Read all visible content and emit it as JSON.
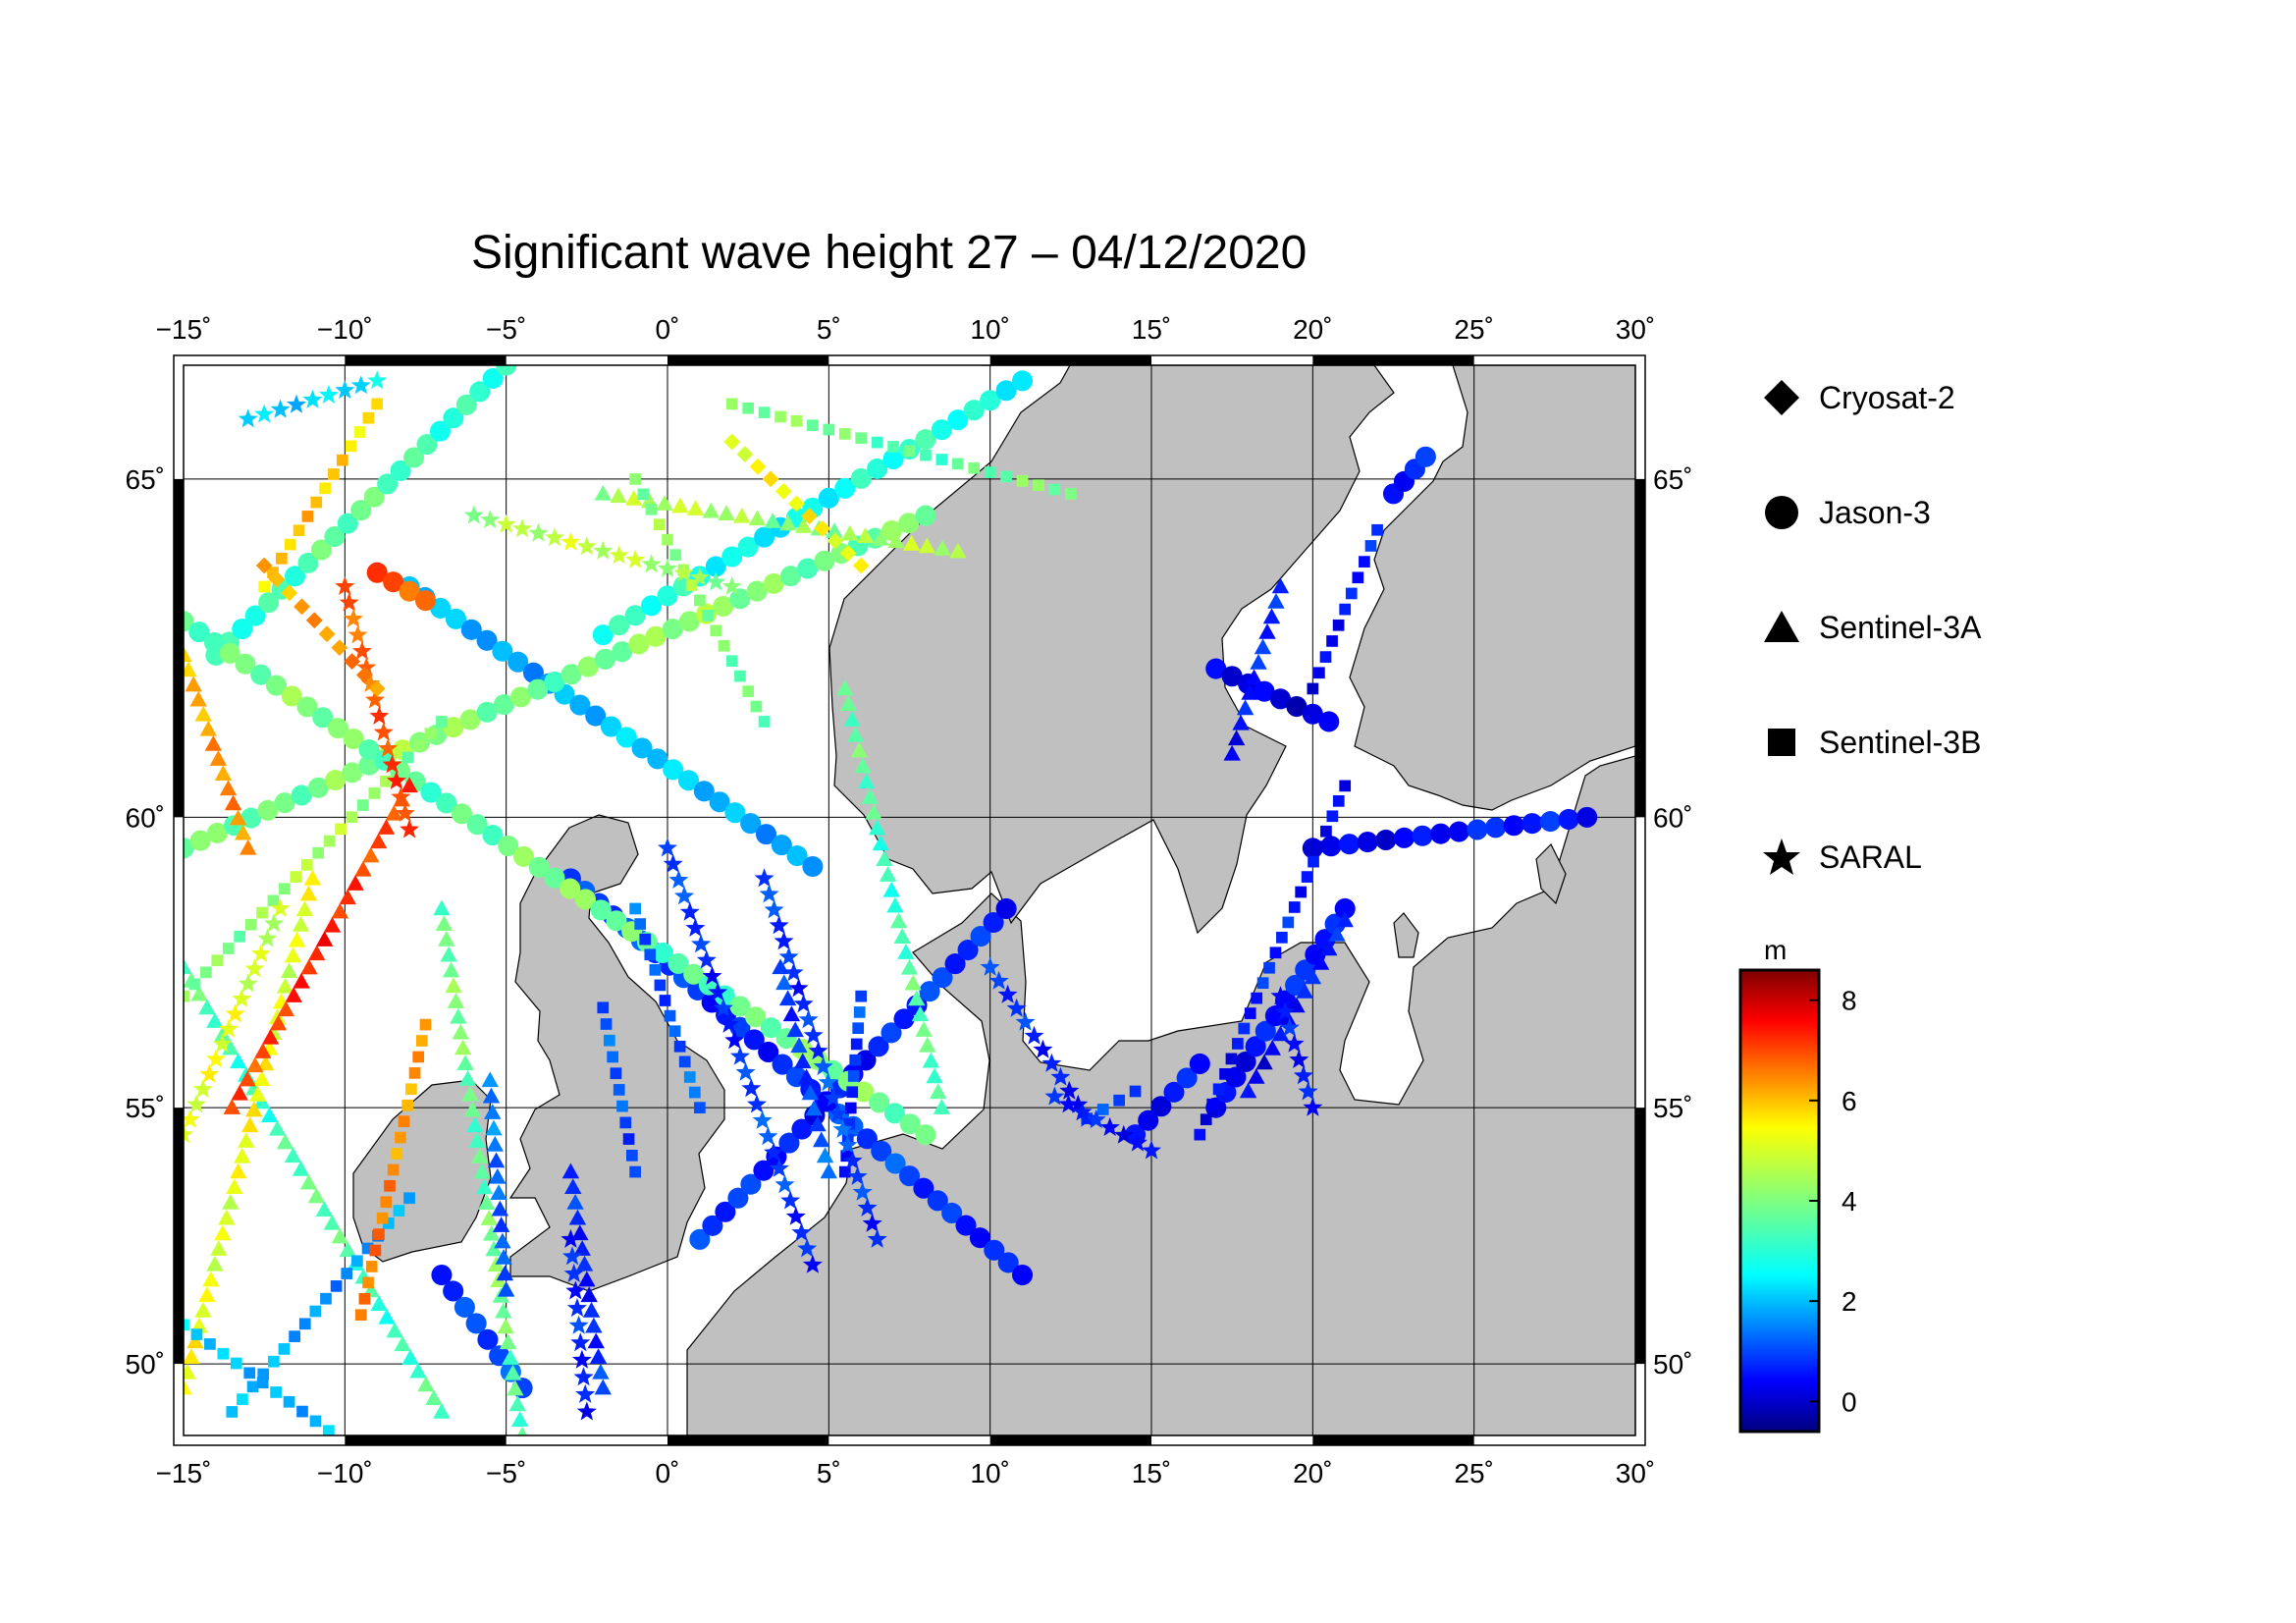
{
  "title": "Significant wave height 27 – 04/12/2020",
  "map": {
    "lon_range": [
      -15,
      30
    ],
    "lat_range": [
      48.5,
      66.5
    ],
    "lon_ticks": [
      -15,
      -10,
      -5,
      0,
      5,
      10,
      15,
      20,
      25,
      30
    ],
    "lat_ticks": [
      50,
      55,
      60,
      65
    ],
    "lon_tick_labels": [
      "−15˚",
      "−10˚",
      "−5˚",
      "0˚",
      "5˚",
      "10˚",
      "15˚",
      "20˚",
      "25˚",
      "30˚"
    ],
    "lat_tick_labels": [
      "50˚",
      "55˚",
      "60˚",
      "65˚"
    ],
    "land_color": "#c0c0c0",
    "sea_color": "#ffffff",
    "gridlines": true
  },
  "legend": {
    "items": [
      {
        "label": "Cryosat-2",
        "symbol": "diamond"
      },
      {
        "label": "Jason-3",
        "symbol": "circle"
      },
      {
        "label": "Sentinel-3A",
        "symbol": "triangle"
      },
      {
        "label": "Sentinel-3B",
        "symbol": "square"
      },
      {
        "label": "SARAL",
        "symbol": "star"
      }
    ]
  },
  "colorbar": {
    "unit": "m",
    "min": -0.6,
    "max": 8.6,
    "ticks": [
      0,
      2,
      4,
      6,
      8
    ],
    "tick_labels": [
      "0",
      "2",
      "4",
      "6",
      "8"
    ],
    "colormap": "jet"
  },
  "tracks": [
    {
      "satellite": "Jason-3",
      "symbol": "circle",
      "from": [
        -3,
        59.0
      ],
      "to": [
        11,
        51.8
      ],
      "swh": 1.0
    },
    {
      "satellite": "Jason-3",
      "symbol": "circle",
      "from": [
        1,
        52.5
      ],
      "to": [
        10.5,
        58.5
      ],
      "swh": 0.8
    },
    {
      "satellite": "Jason-3",
      "symbol": "circle",
      "from": [
        -8,
        63.5
      ],
      "to": [
        4.5,
        59.2
      ],
      "swh": 2.2
    },
    {
      "satellite": "Jason-3",
      "symbol": "circle",
      "from": [
        -15,
        59.5
      ],
      "to": [
        8,
        64.5
      ],
      "swh": 4.0
    },
    {
      "satellite": "Jason-3",
      "symbol": "circle",
      "from": [
        -14,
        62.5
      ],
      "to": [
        -5,
        66.5
      ],
      "swh": 3.5
    },
    {
      "satellite": "Jason-3",
      "symbol": "circle",
      "from": [
        -15,
        63.0
      ],
      "to": [
        8,
        54.5
      ],
      "swh": 3.8
    },
    {
      "satellite": "Jason-3",
      "symbol": "circle",
      "from": [
        -7,
        51.8
      ],
      "to": [
        -4.5,
        49.5
      ],
      "swh": 1.0
    },
    {
      "satellite": "Jason-3",
      "symbol": "circle",
      "from": [
        -2,
        62.8
      ],
      "to": [
        11,
        66.3
      ],
      "swh": 3.0
    },
    {
      "satellite": "Jason-3",
      "symbol": "circle",
      "from": [
        -9,
        63.7
      ],
      "to": [
        -7.5,
        63.3
      ],
      "swh": 6.5
    },
    {
      "satellite": "Jason-3",
      "symbol": "circle",
      "from": [
        17,
        62.3
      ],
      "to": [
        20.5,
        61.5
      ],
      "swh": 0.4
    },
    {
      "satellite": "Jason-3",
      "symbol": "circle",
      "from": [
        20,
        59.5
      ],
      "to": [
        28.5,
        60.0
      ],
      "swh": 0.6
    },
    {
      "satellite": "Jason-3",
      "symbol": "circle",
      "from": [
        17,
        55.0
      ],
      "to": [
        21,
        58.5
      ],
      "swh": 0.6
    },
    {
      "satellite": "Jason-3",
      "symbol": "circle",
      "from": [
        14.5,
        54.5
      ],
      "to": [
        16.5,
        55.8
      ],
      "swh": 0.5
    },
    {
      "satellite": "Jason-3",
      "symbol": "circle",
      "from": [
        22.5,
        64.8
      ],
      "to": [
        23.5,
        65.3
      ],
      "swh": 0.6
    },
    {
      "satellite": "Sentinel-3A",
      "symbol": "triangle",
      "from": [
        -15,
        57.5
      ],
      "to": [
        -7,
        49.0
      ],
      "swh": 3.5
    },
    {
      "satellite": "Sentinel-3A",
      "symbol": "triangle",
      "from": [
        -11,
        59.0
      ],
      "to": [
        -15,
        49.5
      ],
      "swh": 5.0
    },
    {
      "satellite": "Sentinel-3A",
      "symbol": "triangle",
      "from": [
        -8,
        60.5
      ],
      "to": [
        -13.5,
        55.0
      ],
      "swh": 7.0
    },
    {
      "satellite": "Sentinel-3A",
      "symbol": "triangle",
      "from": [
        -15,
        62.5
      ],
      "to": [
        -13,
        59.5
      ],
      "swh": 6.0
    },
    {
      "satellite": "Sentinel-3A",
      "symbol": "triangle",
      "from": [
        -7,
        58.5
      ],
      "to": [
        -4.5,
        48.5
      ],
      "swh": 3.8
    },
    {
      "satellite": "Sentinel-3A",
      "symbol": "triangle",
      "from": [
        5.5,
        62.0
      ],
      "to": [
        8.5,
        55.0
      ],
      "swh": 3.5
    },
    {
      "satellite": "Sentinel-3A",
      "symbol": "triangle",
      "from": [
        -5.5,
        55.5
      ],
      "to": [
        -5,
        51.5
      ],
      "swh": 1.5
    },
    {
      "satellite": "Sentinel-3A",
      "symbol": "triangle",
      "from": [
        -3,
        53.8
      ],
      "to": [
        -2,
        49.5
      ],
      "swh": 0.9
    },
    {
      "satellite": "Sentinel-3A",
      "symbol": "triangle",
      "from": [
        3.5,
        57.5
      ],
      "to": [
        5,
        53.8
      ],
      "swh": 1.2
    },
    {
      "satellite": "Sentinel-3A",
      "symbol": "triangle",
      "from": [
        18,
        55.3
      ],
      "to": [
        21,
        58.3
      ],
      "swh": 0.6
    },
    {
      "satellite": "Sentinel-3A",
      "symbol": "triangle",
      "from": [
        17.5,
        61.0
      ],
      "to": [
        19,
        63.5
      ],
      "swh": 0.7
    },
    {
      "satellite": "Sentinel-3A",
      "symbol": "triangle",
      "from": [
        -2,
        64.8
      ],
      "to": [
        9,
        64.0
      ],
      "swh": 4.3
    },
    {
      "satellite": "Sentinel-3B",
      "symbol": "square",
      "from": [
        -13.5,
        49.0
      ],
      "to": [
        -8,
        53.3
      ],
      "swh": 2.0
    },
    {
      "satellite": "Sentinel-3B",
      "symbol": "square",
      "from": [
        -15,
        50.8
      ],
      "to": [
        -10.5,
        48.6
      ],
      "swh": 2.3
    },
    {
      "satellite": "Sentinel-3B",
      "symbol": "square",
      "from": [
        -7.5,
        56.5
      ],
      "to": [
        -9.5,
        51.0
      ],
      "swh": 6.2
    },
    {
      "satellite": "Sentinel-3B",
      "symbol": "square",
      "from": [
        -7,
        61.5
      ],
      "to": [
        -15,
        57.0
      ],
      "swh": 4.2
    },
    {
      "satellite": "Sentinel-3B",
      "symbol": "square",
      "from": [
        -9,
        66.0
      ],
      "to": [
        -12.5,
        63.5
      ],
      "swh": 5.5
    },
    {
      "satellite": "Sentinel-3B",
      "symbol": "square",
      "from": [
        -1,
        65.0
      ],
      "to": [
        3,
        61.5
      ],
      "swh": 4.0
    },
    {
      "satellite": "Sentinel-3B",
      "symbol": "square",
      "from": [
        -2,
        56.8
      ],
      "to": [
        -1,
        53.8
      ],
      "swh": 1.2
    },
    {
      "satellite": "Sentinel-3B",
      "symbol": "square",
      "from": [
        6,
        57.0
      ],
      "to": [
        5.5,
        53.8
      ],
      "swh": 1.0
    },
    {
      "satellite": "Sentinel-3B",
      "symbol": "square",
      "from": [
        -1,
        58.5
      ],
      "to": [
        1,
        55.0
      ],
      "swh": 1.4
    },
    {
      "satellite": "Sentinel-3B",
      "symbol": "square",
      "from": [
        16.5,
        54.5
      ],
      "to": [
        21,
        60.5
      ],
      "swh": 0.7
    },
    {
      "satellite": "Sentinel-3B",
      "symbol": "square",
      "from": [
        20,
        62.0
      ],
      "to": [
        22,
        64.3
      ],
      "swh": 0.6
    },
    {
      "satellite": "Sentinel-3B",
      "symbol": "square",
      "from": [
        13,
        54.8
      ],
      "to": [
        14.5,
        55.3
      ],
      "swh": 1.2
    },
    {
      "satellite": "Sentinel-3B",
      "symbol": "square",
      "from": [
        2,
        66.0
      ],
      "to": [
        12.5,
        64.8
      ],
      "swh": 3.8
    },
    {
      "satellite": "SARAL",
      "symbol": "star",
      "from": [
        0,
        59.5
      ],
      "to": [
        4.5,
        52.0
      ],
      "swh": 1.0
    },
    {
      "satellite": "SARAL",
      "symbol": "star",
      "from": [
        3,
        59.0
      ],
      "to": [
        6.5,
        52.5
      ],
      "swh": 1.1
    },
    {
      "satellite": "SARAL",
      "symbol": "star",
      "from": [
        -10,
        63.5
      ],
      "to": [
        -8,
        59.8
      ],
      "swh": 6.7
    },
    {
      "satellite": "SARAL",
      "symbol": "star",
      "from": [
        -12,
        58.5
      ],
      "to": [
        -15,
        54.5
      ],
      "swh": 4.8
    },
    {
      "satellite": "SARAL",
      "symbol": "star",
      "from": [
        -6,
        64.5
      ],
      "to": [
        2,
        63.5
      ],
      "swh": 4.4
    },
    {
      "satellite": "SARAL",
      "symbol": "star",
      "from": [
        -3,
        52.5
      ],
      "to": [
        -2.5,
        49.0
      ],
      "swh": 0.7
    },
    {
      "satellite": "SARAL",
      "symbol": "star",
      "from": [
        10,
        57.5
      ],
      "to": [
        13,
        54.8
      ],
      "swh": 0.8
    },
    {
      "satellite": "SARAL",
      "symbol": "star",
      "from": [
        12,
        55.2
      ],
      "to": [
        15,
        54.2
      ],
      "swh": 0.7
    },
    {
      "satellite": "SARAL",
      "symbol": "star",
      "from": [
        19,
        57.0
      ],
      "to": [
        20,
        55.0
      ],
      "swh": 0.9
    },
    {
      "satellite": "SARAL",
      "symbol": "star",
      "from": [
        -13,
        65.8
      ],
      "to": [
        -9,
        66.3
      ],
      "swh": 2.6
    },
    {
      "satellite": "Cryosat-2",
      "symbol": "diamond",
      "from": [
        -12.5,
        63.8
      ],
      "to": [
        -9,
        62.0
      ],
      "swh": 6.0
    },
    {
      "satellite": "Cryosat-2",
      "symbol": "diamond",
      "from": [
        2,
        65.5
      ],
      "to": [
        6,
        63.8
      ],
      "swh": 5.0
    }
  ]
}
